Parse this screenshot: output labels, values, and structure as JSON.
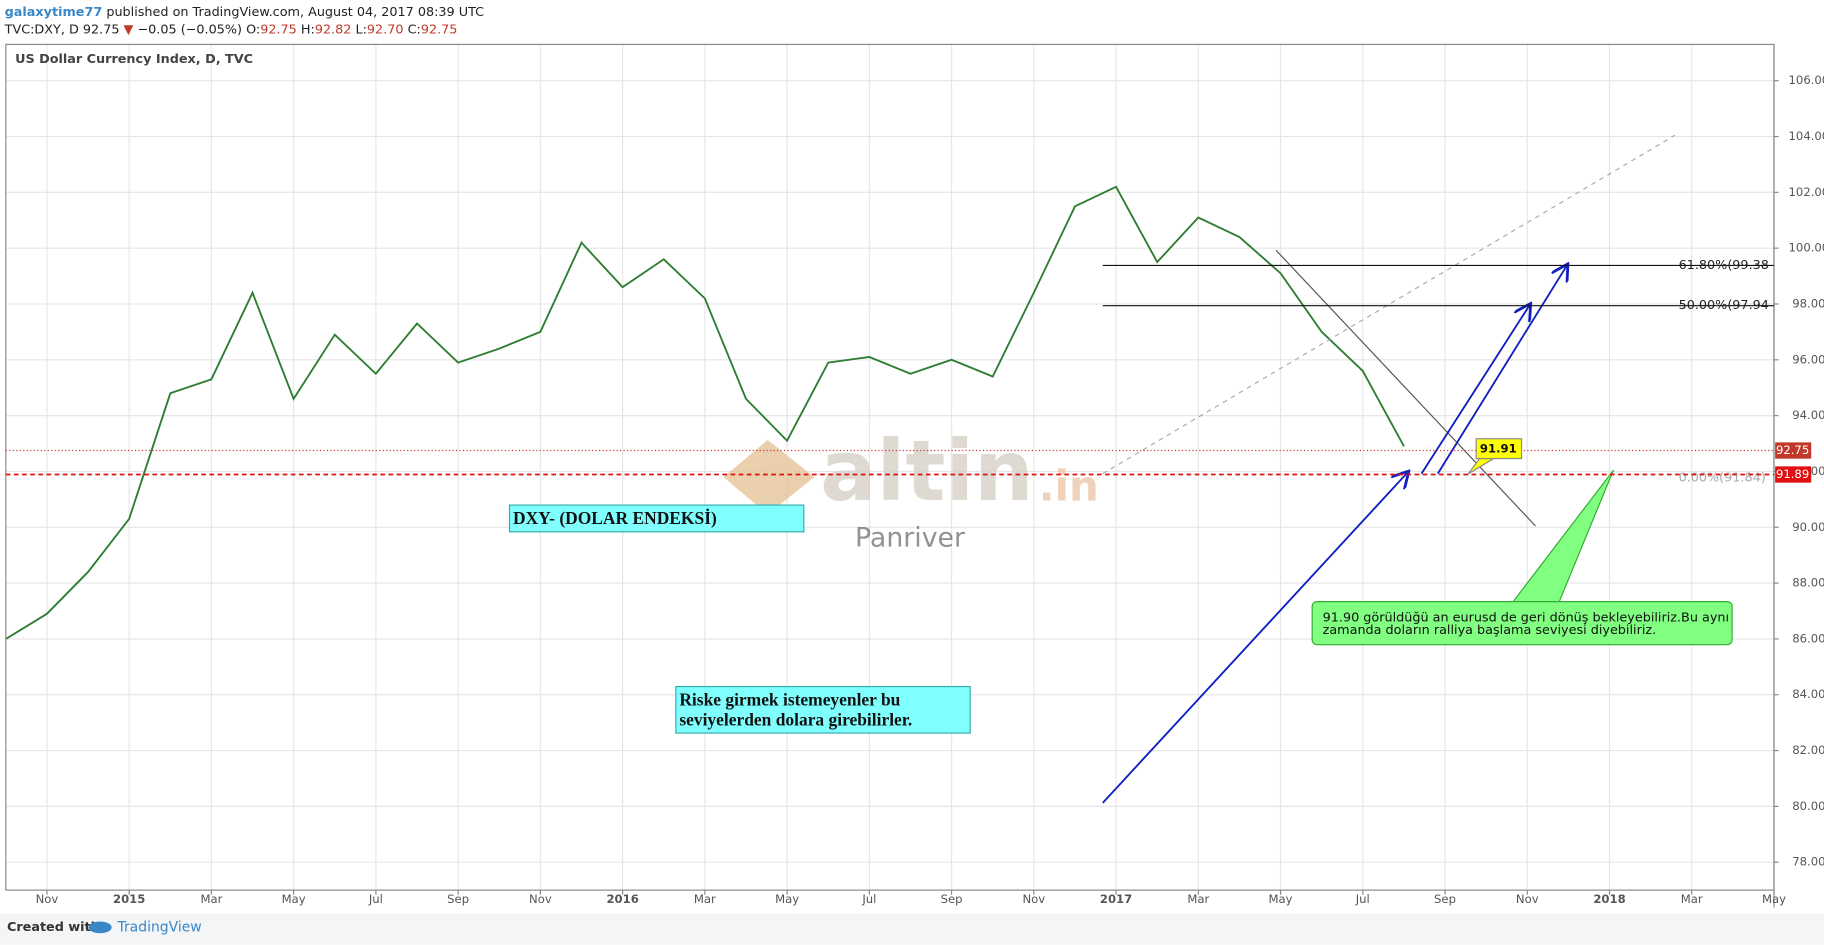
{
  "header": {
    "author": "galaxytime77",
    "published": "published on TradingView.com, August 04, 2017 08:39 UTC",
    "symbol": "TVC:DXY, D",
    "last": "92.75",
    "arrow": "▼",
    "change": "−0.05 (−0.05%)",
    "open_label": "O:",
    "open": "92.75",
    "high_label": "H:",
    "high": "92.82",
    "low_label": "L:",
    "low": "92.70",
    "close_label": "C:",
    "close": "92.75"
  },
  "chart_data": {
    "type": "line",
    "title": "US Dollar Currency Index, D, TVC",
    "color": "#2e7d32",
    "x": [
      "2014-10",
      "2014-11",
      "2014-12",
      "2015-01",
      "2015-02",
      "2015-03",
      "2015-04",
      "2015-05",
      "2015-06",
      "2015-07",
      "2015-08",
      "2015-09",
      "2015-10",
      "2015-11",
      "2015-12",
      "2016-01",
      "2016-02",
      "2016-03",
      "2016-04",
      "2016-05",
      "2016-06",
      "2016-07",
      "2016-08",
      "2016-09",
      "2016-10",
      "2016-11",
      "2016-12",
      "2017-01",
      "2017-02",
      "2017-03",
      "2017-04",
      "2017-05",
      "2017-06",
      "2017-07",
      "2017-08"
    ],
    "values": [
      86.0,
      86.9,
      88.4,
      90.3,
      94.8,
      95.3,
      98.4,
      94.6,
      96.9,
      95.5,
      97.3,
      95.9,
      96.4,
      97.0,
      100.2,
      98.6,
      99.6,
      98.2,
      94.6,
      93.1,
      95.9,
      96.1,
      95.5,
      96.0,
      95.4,
      98.4,
      101.5,
      102.2,
      99.5,
      101.1,
      100.4,
      99.1,
      97.0,
      95.6,
      92.9
    ],
    "xlim": [
      "2014-10",
      "2018-05"
    ],
    "xticks": [
      {
        "value": "2014-11",
        "label": "Nov"
      },
      {
        "value": "2015-01",
        "label": "2015"
      },
      {
        "value": "2015-03",
        "label": "Mar"
      },
      {
        "value": "2015-05",
        "label": "May"
      },
      {
        "value": "2015-07",
        "label": "Jul"
      },
      {
        "value": "2015-09",
        "label": "Sep"
      },
      {
        "value": "2015-11",
        "label": "Nov"
      },
      {
        "value": "2016-01",
        "label": "2016"
      },
      {
        "value": "2016-03",
        "label": "Mar"
      },
      {
        "value": "2016-05",
        "label": "May"
      },
      {
        "value": "2016-07",
        "label": "Jul"
      },
      {
        "value": "2016-09",
        "label": "Sep"
      },
      {
        "value": "2016-11",
        "label": "Nov"
      },
      {
        "value": "2017-01",
        "label": "2017"
      },
      {
        "value": "2017-03",
        "label": "Mar"
      },
      {
        "value": "2017-05",
        "label": "May"
      },
      {
        "value": "2017-07",
        "label": "Jul"
      },
      {
        "value": "2017-09",
        "label": "Sep"
      },
      {
        "value": "2017-11",
        "label": "Nov"
      },
      {
        "value": "2018-01",
        "label": "2018"
      },
      {
        "value": "2018-03",
        "label": "Mar"
      },
      {
        "value": "2018-05",
        "label": "May"
      }
    ],
    "ylim": [
      77,
      107.3
    ],
    "yticks": [
      {
        "value": 78,
        "label": "78.00"
      },
      {
        "value": 80,
        "label": "80.00"
      },
      {
        "value": 82,
        "label": "82.00"
      },
      {
        "value": 84,
        "label": "84.00"
      },
      {
        "value": 86,
        "label": "86.00"
      },
      {
        "value": 88,
        "label": "88.00"
      },
      {
        "value": 90,
        "label": "90.00"
      },
      {
        "value": 92,
        "label": "92.00"
      },
      {
        "value": 94,
        "label": "94.00"
      },
      {
        "value": 96,
        "label": "96.00"
      },
      {
        "value": 98,
        "label": "98.00"
      },
      {
        "value": 100,
        "label": "100.00"
      },
      {
        "value": 102,
        "label": "102.00"
      },
      {
        "value": 104,
        "label": "104.00"
      },
      {
        "value": 106,
        "label": "106.00"
      }
    ],
    "grid": true,
    "last_price": 92.75,
    "alert_level": 91.89,
    "fib_levels": [
      {
        "value": 99.38,
        "label": "61.80%(99.38"
      },
      {
        "value": 97.94,
        "label": "50.00%(97.94"
      },
      {
        "value": 91.84,
        "label": "0.00%(91.84)"
      }
    ],
    "callout_price": 91.91,
    "annotations": {
      "index_name": "DXY- (DOLAR ENDEKSİ)",
      "advice": [
        "Riske girmek istemeyenler bu",
        "seviyelerden dolara girebilirler."
      ],
      "note": [
        "91.90 görüldüğü an eurusd de geri dönüş bekleyebiliriz.Bu aynı",
        "zamanda doların ralliya başlama seviyesi diyebiliriz."
      ]
    },
    "watermark": {
      "brand": "altin",
      ".in": ".in",
      "sub": "Panriver"
    }
  },
  "footer": {
    "created": "Created with",
    "brand": "TradingView"
  }
}
